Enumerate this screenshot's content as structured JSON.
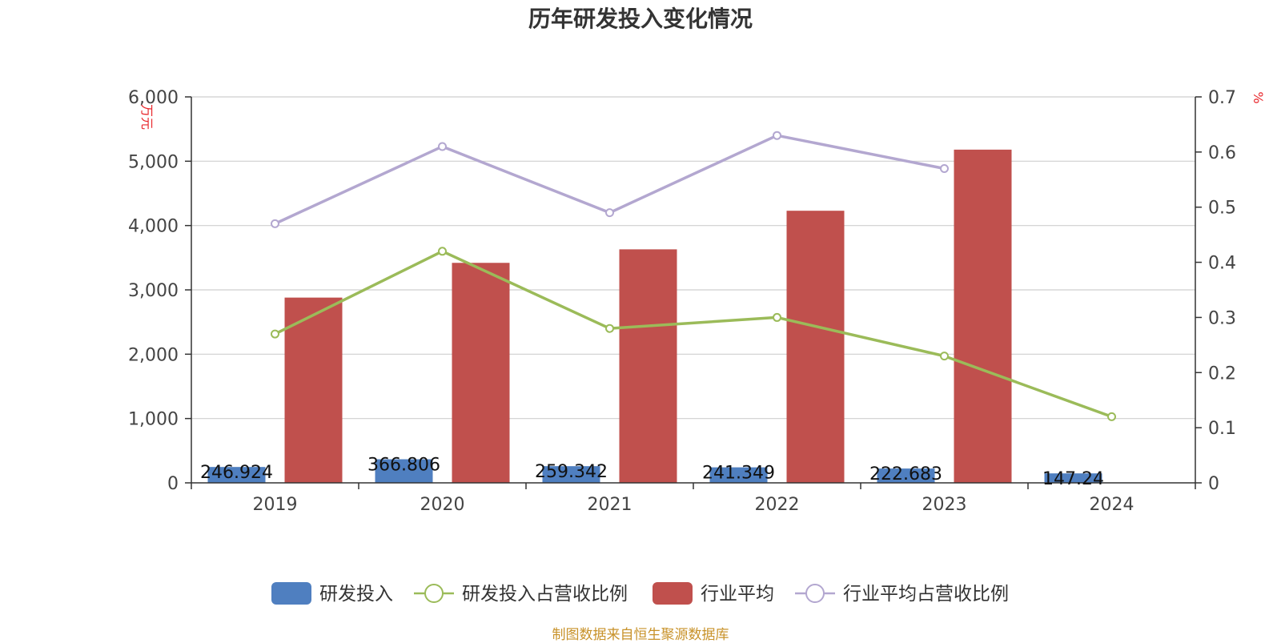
{
  "title": "历年研发投入变化情况",
  "source": "制图数据来自恒生聚源数据库",
  "colors": {
    "rd_bar": "#4f7fc0",
    "industry_bar": "#c0504d",
    "rd_ratio_line": "#9bbb59",
    "industry_ratio_line": "#b3a7d0",
    "unit_text": "#e8262b",
    "source_text": "#c8922a"
  },
  "chart_data": {
    "type": "bar",
    "categories": [
      "2019",
      "2020",
      "2021",
      "2022",
      "2023",
      "2024"
    ],
    "left_axis": {
      "unit": "万元",
      "ylim": [
        0,
        6000
      ],
      "ticks": [
        "0",
        "1,000",
        "2,000",
        "3,000",
        "4,000",
        "5,000",
        "6,000"
      ]
    },
    "right_axis": {
      "unit": "%",
      "ylim": [
        0,
        0.7
      ],
      "ticks": [
        "0",
        "0.1",
        "0.2",
        "0.3",
        "0.4",
        "0.5",
        "0.6",
        "0.7"
      ]
    },
    "grid": true,
    "legend_position": "bottom",
    "series": [
      {
        "name": "研发投入",
        "type": "bar",
        "axis": "left",
        "values": [
          246.924,
          366.806,
          259.342,
          241.349,
          222.683,
          147.24
        ],
        "labels": [
          "246.924",
          "366.806",
          "259.342",
          "241.349",
          "222.683",
          "147.24"
        ]
      },
      {
        "name": "研发投入占营收比例",
        "type": "line",
        "axis": "right",
        "values": [
          0.27,
          0.42,
          0.28,
          0.3,
          0.23,
          0.12
        ]
      },
      {
        "name": "行业平均",
        "type": "bar",
        "axis": "left",
        "values": [
          2880,
          3420,
          3630,
          4230,
          5180,
          null
        ]
      },
      {
        "name": "行业平均占营收比例",
        "type": "line",
        "axis": "right",
        "values": [
          0.47,
          0.61,
          0.49,
          0.63,
          0.57,
          null
        ]
      }
    ]
  }
}
